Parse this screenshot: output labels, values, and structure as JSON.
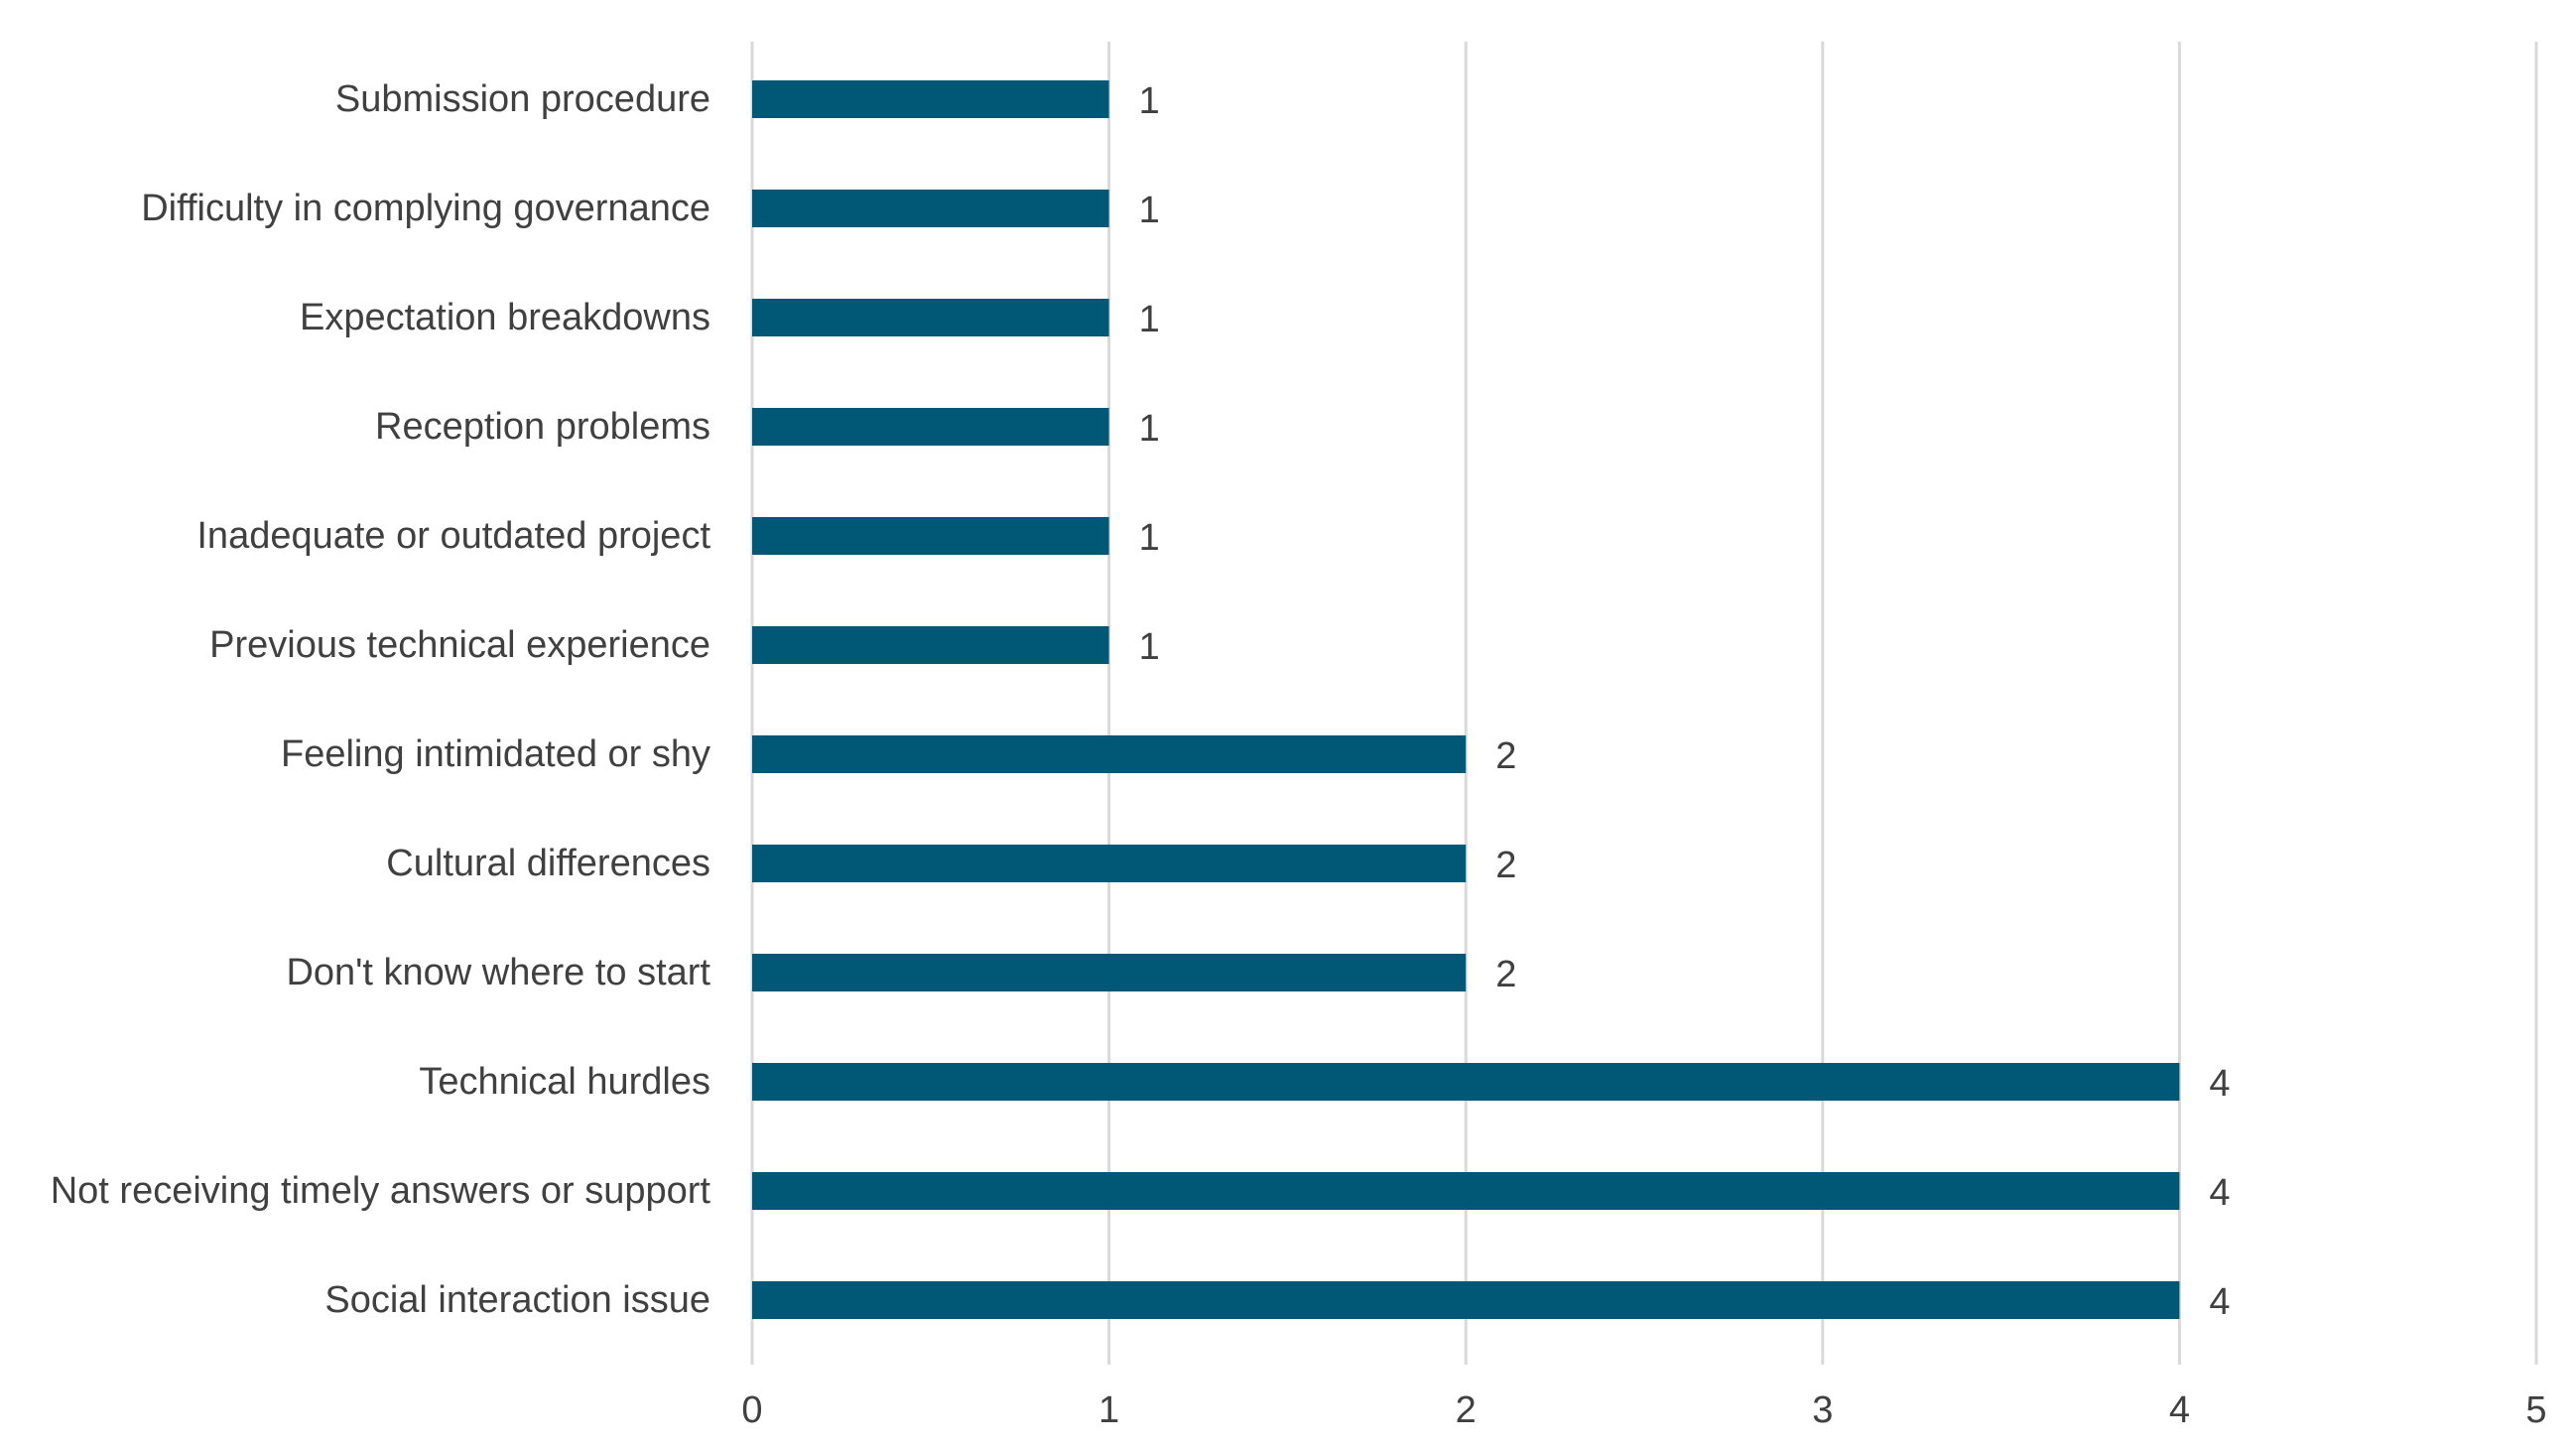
{
  "chart_data": {
    "type": "bar",
    "orientation": "horizontal",
    "categories": [
      "Submission procedure",
      "Difficulty in complying governance",
      "Expectation breakdowns",
      "Reception problems",
      "Inadequate or outdated project",
      "Previous technical experience",
      "Feeling intimidated or shy",
      "Cultural differences",
      "Don't know where to start",
      "Technical hurdles",
      "Not receiving timely answers or support",
      "Social interaction issue"
    ],
    "values": [
      1,
      1,
      1,
      1,
      1,
      1,
      2,
      2,
      2,
      4,
      4,
      4
    ],
    "xlim": [
      0,
      5
    ],
    "xticks": [
      "0",
      "1",
      "2",
      "3",
      "4",
      "5"
    ],
    "data_labels": [
      "1",
      "1",
      "1",
      "1",
      "1",
      "1",
      "2",
      "2",
      "2",
      "4",
      "4",
      "4"
    ],
    "grid": "vertical",
    "legend": "none",
    "bar_color": "#005776",
    "title": "",
    "xlabel": "",
    "ylabel": ""
  }
}
